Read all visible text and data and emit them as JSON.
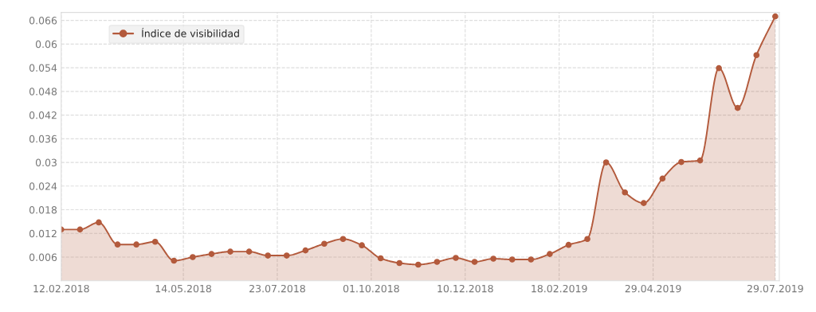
{
  "chart_data": {
    "type": "area",
    "x": [
      "2018-02-12",
      "2018-02-26",
      "2018-03-12",
      "2018-03-26",
      "2018-04-09",
      "2018-04-23",
      "2018-05-07",
      "2018-05-21",
      "2018-06-04",
      "2018-06-18",
      "2018-07-02",
      "2018-07-16",
      "2018-07-30",
      "2018-08-13",
      "2018-08-27",
      "2018-09-10",
      "2018-09-24",
      "2018-10-08",
      "2018-10-22",
      "2018-11-05",
      "2018-11-19",
      "2018-12-03",
      "2018-12-17",
      "2018-12-31",
      "2019-01-14",
      "2019-01-28",
      "2019-02-11",
      "2019-02-25",
      "2019-03-11",
      "2019-03-25",
      "2019-04-08",
      "2019-04-22",
      "2019-05-06",
      "2019-05-20",
      "2019-06-03",
      "2019-06-17",
      "2019-07-01",
      "2019-07-15",
      "2019-07-29"
    ],
    "series": [
      {
        "name": "Índice de visibilidad",
        "color": "#b35a3c",
        "values": [
          0.013,
          0.013,
          0.0148,
          0.0092,
          0.0092,
          0.0099,
          0.0051,
          0.006,
          0.0068,
          0.0074,
          0.0074,
          0.0064,
          0.0064,
          0.0077,
          0.0094,
          0.0106,
          0.009,
          0.0057,
          0.0045,
          0.0041,
          0.0048,
          0.0058,
          0.0048,
          0.0056,
          0.0054,
          0.0054,
          0.0068,
          0.0091,
          0.0106,
          0.03,
          0.0224,
          0.0197,
          0.0259,
          0.0301,
          0.0305,
          0.0539,
          0.0438,
          0.0572,
          0.067
        ]
      }
    ],
    "xlim": [
      "2018-02-12",
      "2019-08-01"
    ],
    "xticks": [
      {
        "value": "2018-02-12",
        "label": "12.02.2018"
      },
      {
        "value": "2018-05-14",
        "label": "14.05.2018"
      },
      {
        "value": "2018-07-23",
        "label": "23.07.2018"
      },
      {
        "value": "2018-10-01",
        "label": "01.10.2018"
      },
      {
        "value": "2018-12-10",
        "label": "10.12.2018"
      },
      {
        "value": "2019-02-18",
        "label": "18.02.2019"
      },
      {
        "value": "2019-04-29",
        "label": "29.04.2019"
      },
      {
        "value": "2019-07-29",
        "label": "29.07.2019"
      }
    ],
    "ylim": [
      0,
      0.068
    ],
    "yticks": [
      0.006,
      0.012,
      0.018,
      0.024,
      0.03,
      0.036,
      0.042,
      0.048,
      0.054,
      0.06,
      0.066
    ],
    "grid": true,
    "legend": "top left",
    "marker": "circle",
    "line_style": "solid"
  }
}
